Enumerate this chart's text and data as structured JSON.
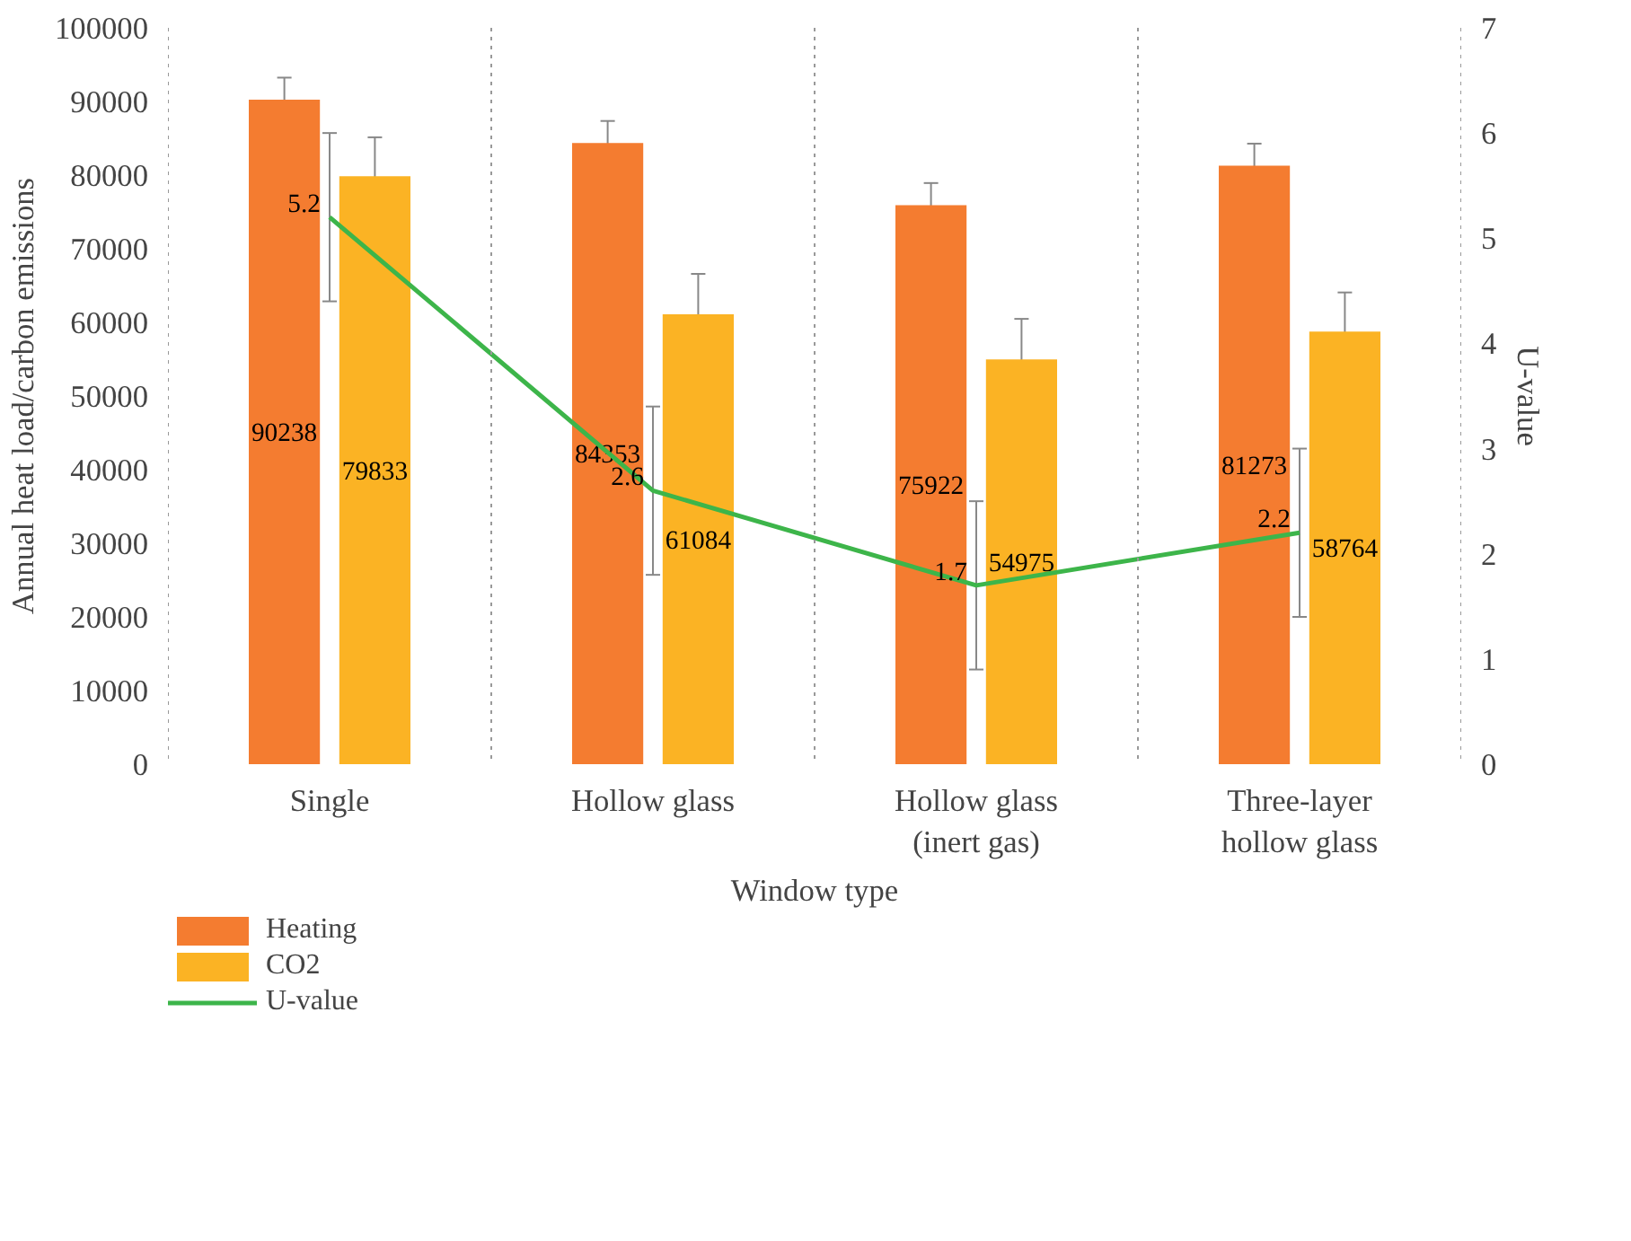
{
  "chart_data": {
    "type": "bar",
    "xlabel": "Window type",
    "ylabel": "Annual heat load/carbon emissions",
    "y2label": "U-value",
    "categories": [
      "Single",
      "Hollow glass",
      "Hollow glass\n(inert gas)",
      "Three-layer\nhollow glass"
    ],
    "series": [
      {
        "name": "Heating",
        "color": "#f47c30",
        "values": [
          90238,
          84353,
          75922,
          81273
        ],
        "errors": [
          3000,
          3000,
          3000,
          3000
        ]
      },
      {
        "name": "CO2",
        "color": "#fbb324",
        "values": [
          79833,
          61084,
          54975,
          58764
        ],
        "errors": [
          5300,
          5500,
          5500,
          5300
        ]
      },
      {
        "name": "U-value",
        "type": "line",
        "axis": "y2",
        "color": "#3db54a",
        "values": [
          5.2,
          2.6,
          1.7,
          2.2
        ],
        "errors": [
          0.8,
          0.8,
          0.8,
          0.8
        ]
      }
    ],
    "ylim": [
      0,
      100000
    ],
    "yticks": [
      0,
      10000,
      20000,
      30000,
      40000,
      50000,
      60000,
      70000,
      80000,
      90000,
      100000
    ],
    "y2lim": [
      0,
      7
    ],
    "y2ticks": [
      0,
      1,
      2,
      3,
      4,
      5,
      6,
      7
    ],
    "data_labels": true,
    "grid": "x",
    "legend": "bottom",
    "marker": "none",
    "line_style": "solid"
  }
}
